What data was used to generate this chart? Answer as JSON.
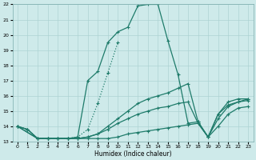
{
  "xlabel": "Humidex (Indice chaleur)",
  "bg_color": "#ceeaea",
  "grid_color": "#aed4d4",
  "line_color": "#1e7b6a",
  "xlim": [
    -0.5,
    23.5
  ],
  "ylim": [
    13,
    22
  ],
  "yticks": [
    13,
    14,
    15,
    16,
    17,
    18,
    19,
    20,
    21,
    22
  ],
  "xticks": [
    0,
    1,
    2,
    3,
    4,
    5,
    6,
    7,
    8,
    9,
    10,
    11,
    12,
    13,
    14,
    15,
    16,
    17,
    18,
    19,
    20,
    21,
    22,
    23
  ],
  "line1_x": [
    0,
    1,
    2,
    3,
    4,
    5,
    6,
    7,
    8,
    9,
    10,
    11,
    12,
    13,
    14,
    15,
    16,
    17,
    18,
    19,
    20,
    21,
    22,
    23
  ],
  "line1_y": [
    14.0,
    13.8,
    13.2,
    13.2,
    13.2,
    13.2,
    13.2,
    13.2,
    13.2,
    13.2,
    13.3,
    13.5,
    13.6,
    13.7,
    13.8,
    13.9,
    14.0,
    14.1,
    14.2,
    13.3,
    14.5,
    15.3,
    15.6,
    15.8
  ],
  "line2_x": [
    0,
    1,
    2,
    3,
    4,
    5,
    6,
    7,
    8,
    9,
    10,
    11,
    12,
    13,
    14,
    15,
    16,
    17,
    18,
    19,
    20,
    21,
    22,
    23
  ],
  "line2_y": [
    14.0,
    13.8,
    13.2,
    13.2,
    13.2,
    13.2,
    13.3,
    17.0,
    17.6,
    19.5,
    20.2,
    20.5,
    21.9,
    22.0,
    22.0,
    19.6,
    17.4,
    14.2,
    14.3,
    13.3,
    14.8,
    15.6,
    15.8,
    15.8
  ],
  "line3_x": [
    0,
    2,
    3,
    4,
    5,
    6,
    7,
    8,
    9,
    10,
    11,
    12,
    13,
    14,
    15,
    16,
    17,
    18,
    19,
    20,
    21,
    22,
    23
  ],
  "line3_y": [
    14.0,
    13.2,
    13.2,
    13.2,
    13.2,
    13.2,
    13.3,
    13.5,
    14.0,
    14.5,
    15.0,
    15.5,
    15.8,
    16.0,
    16.2,
    16.5,
    16.8,
    14.3,
    13.3,
    14.8,
    15.4,
    15.6,
    15.7
  ],
  "line4_x": [
    0,
    2,
    3,
    4,
    5,
    6,
    7,
    8,
    9,
    10,
    11,
    12,
    13,
    14,
    15,
    16,
    17,
    18,
    19,
    20,
    21,
    22,
    23
  ],
  "line4_y": [
    14.0,
    13.2,
    13.2,
    13.2,
    13.2,
    13.2,
    13.3,
    13.5,
    13.8,
    14.2,
    14.5,
    14.8,
    15.0,
    15.2,
    15.3,
    15.5,
    15.6,
    14.2,
    13.3,
    14.0,
    14.8,
    15.2,
    15.3
  ],
  "dotted_x": [
    0,
    1,
    2,
    3,
    4,
    5,
    6,
    7,
    8,
    9,
    10
  ],
  "dotted_y": [
    14.0,
    13.8,
    13.2,
    13.2,
    13.2,
    13.2,
    13.3,
    13.8,
    15.5,
    17.5,
    19.5
  ]
}
